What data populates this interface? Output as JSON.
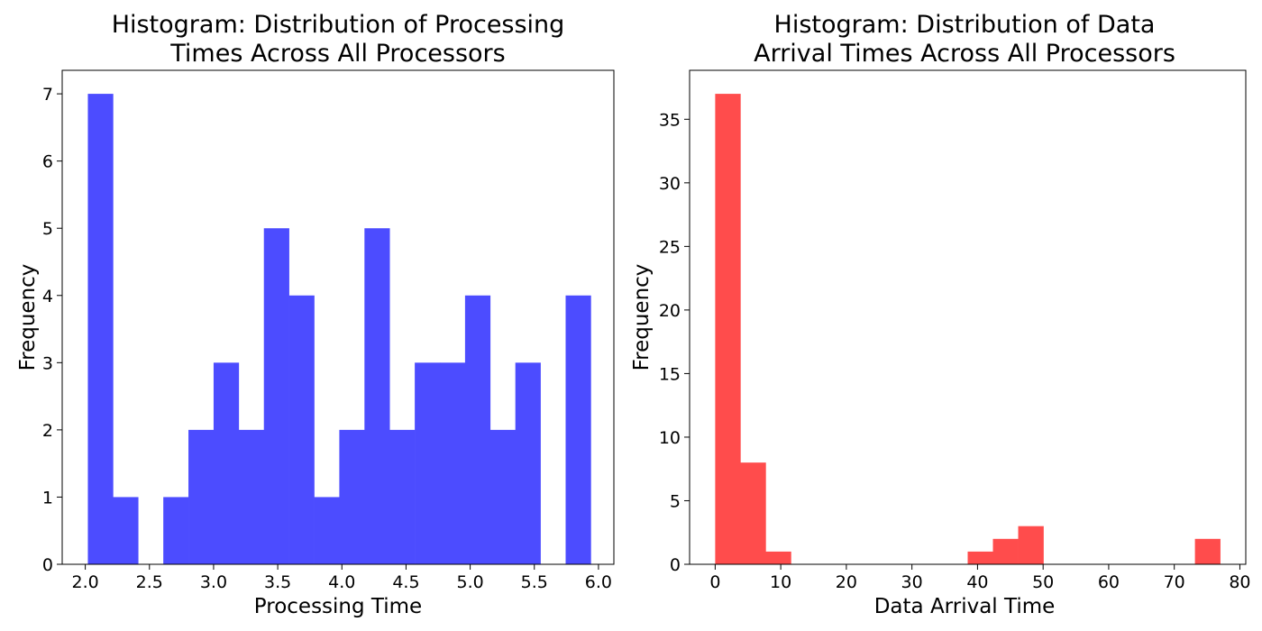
{
  "chart_data": [
    {
      "type": "bar",
      "title_lines": [
        "Histogram: Distribution of Processing",
        "Times Across All Processors"
      ],
      "xlabel": "Processing Time",
      "ylabel": "Frequency",
      "color": "#4c4cff",
      "xlim": [
        1.82,
        6.12
      ],
      "ylim": [
        0,
        7.35
      ],
      "xticks": [
        2.0,
        2.5,
        3.0,
        3.5,
        4.0,
        4.5,
        5.0,
        5.5,
        6.0
      ],
      "xtick_labels": [
        "2.0",
        "2.5",
        "3.0",
        "3.5",
        "4.0",
        "4.5",
        "5.0",
        "5.5",
        "6.0"
      ],
      "yticks": [
        0,
        1,
        2,
        3,
        4,
        5,
        6,
        7
      ],
      "ytick_labels": [
        "0",
        "1",
        "2",
        "3",
        "4",
        "5",
        "6",
        "7"
      ],
      "bin_edges": [
        2.02,
        2.216,
        2.412,
        2.608,
        2.804,
        3.0,
        3.196,
        3.392,
        3.588,
        3.784,
        3.98,
        4.176,
        4.372,
        4.568,
        4.764,
        4.96,
        5.156,
        5.352,
        5.548,
        5.744,
        5.94
      ],
      "values": [
        7,
        1,
        0,
        1,
        2,
        3,
        2,
        5,
        4,
        1,
        2,
        5,
        2,
        3,
        3,
        4,
        2,
        3,
        0,
        4
      ],
      "grid": false
    },
    {
      "type": "bar",
      "title_lines": [
        "Histogram: Distribution of Data",
        "Arrival Times Across All Processors"
      ],
      "xlabel": "Data Arrival Time",
      "ylabel": "Frequency",
      "color": "#ff4c4c",
      "xlim": [
        -3.9,
        80.9
      ],
      "ylim": [
        0,
        38.85
      ],
      "xticks": [
        0,
        10,
        20,
        30,
        40,
        50,
        60,
        70,
        80
      ],
      "xtick_labels": [
        "0",
        "10",
        "20",
        "30",
        "40",
        "50",
        "60",
        "70",
        "80"
      ],
      "yticks": [
        0,
        5,
        10,
        15,
        20,
        25,
        30,
        35
      ],
      "ytick_labels": [
        "0",
        "5",
        "10",
        "15",
        "20",
        "25",
        "30",
        "35"
      ],
      "bin_edges": [
        0.0,
        3.85,
        7.7,
        11.55,
        15.4,
        19.25,
        23.1,
        26.95,
        30.8,
        34.65,
        38.5,
        42.35,
        46.2,
        50.05,
        53.9,
        57.75,
        61.6,
        65.45,
        69.3,
        73.15,
        77.0
      ],
      "values": [
        37,
        8,
        1,
        0,
        0,
        0,
        0,
        0,
        0,
        0,
        1,
        2,
        3,
        0,
        0,
        0,
        0,
        0,
        0,
        2
      ],
      "grid": false
    }
  ]
}
